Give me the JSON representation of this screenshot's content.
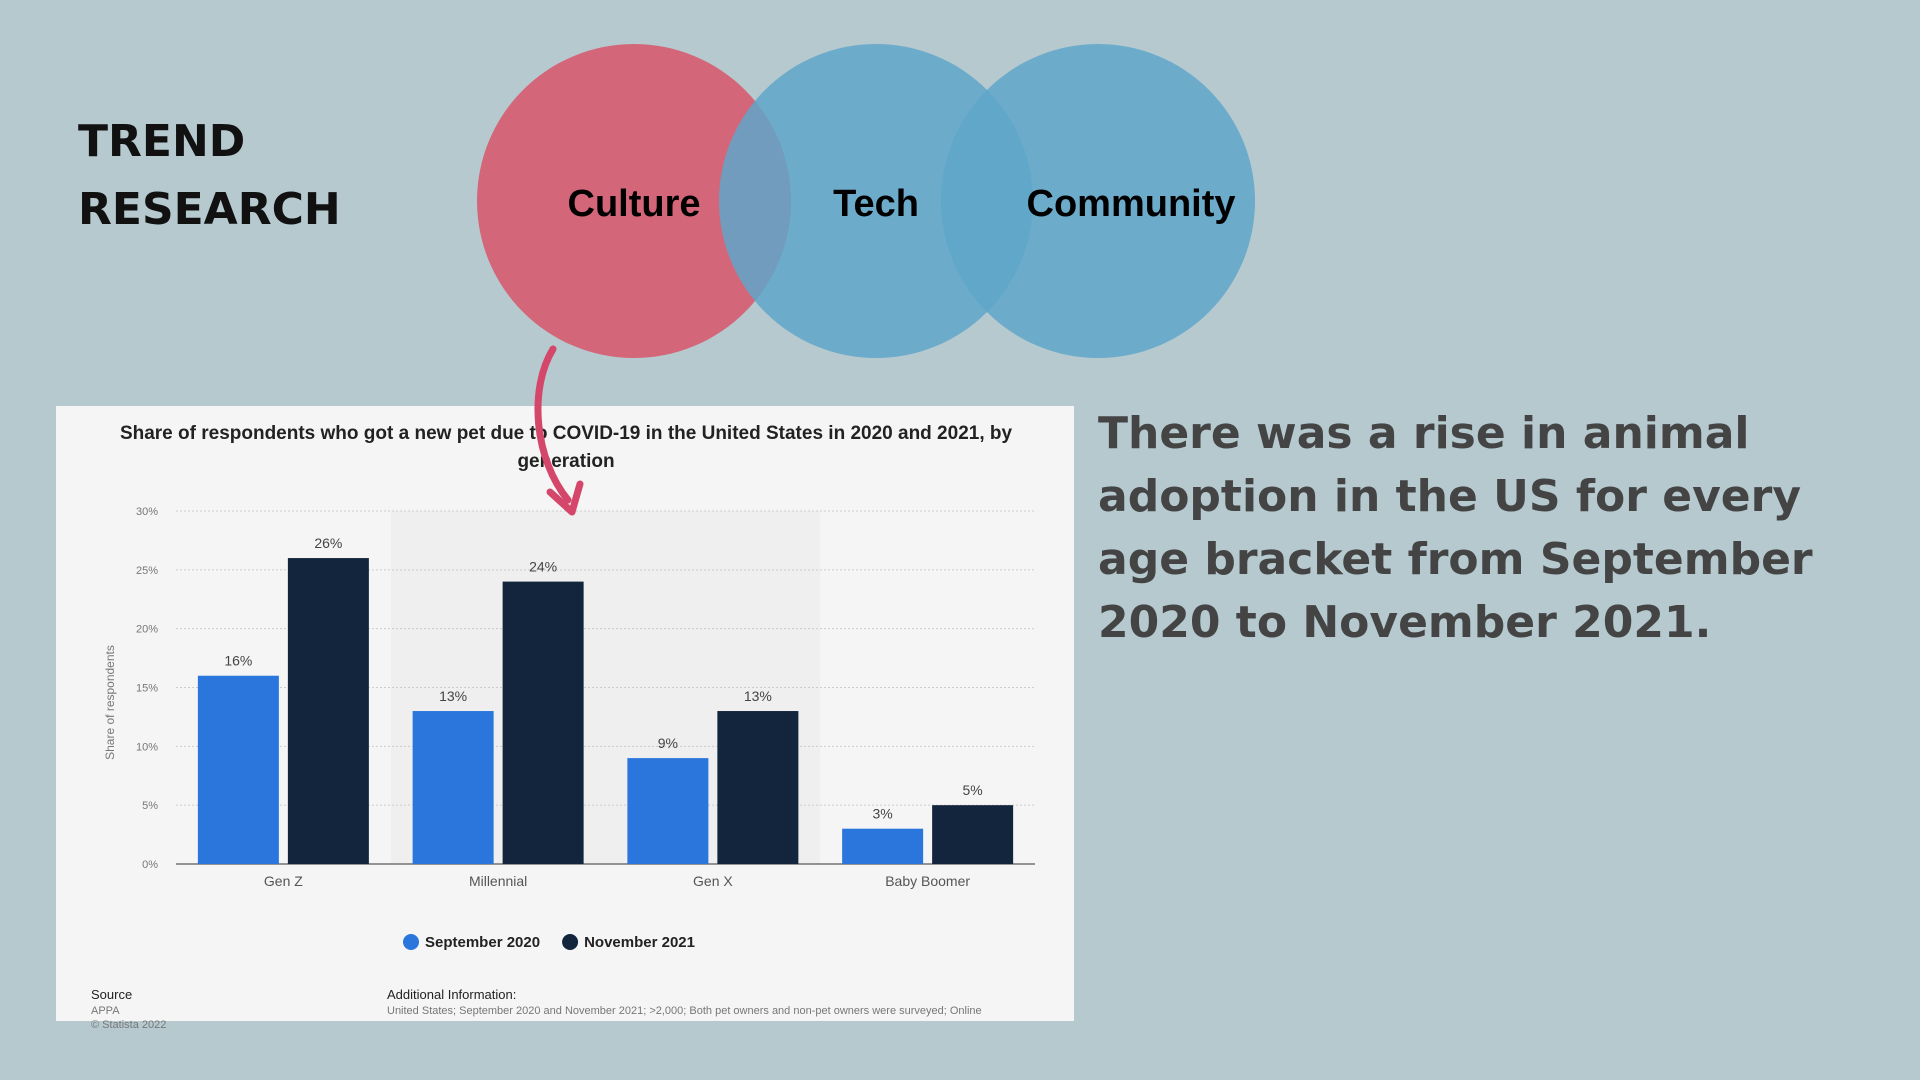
{
  "slide": {
    "title": "TREND RESEARCH",
    "venn": [
      "Culture",
      "Tech",
      "Community"
    ],
    "body": "There was a rise in animal adoption in the US for every age bracket from September 2020 to November 2021."
  },
  "chart_data": {
    "type": "bar",
    "title": "Share of respondents who got a new pet due to COVID-19 in the United States in 2020 and 2021, by generation",
    "y_label": "Share of respondents",
    "categories": [
      "Gen Z",
      "Millennial",
      "Gen X",
      "Baby Boomer"
    ],
    "series": [
      {
        "name": "September 2020",
        "color": "#2b76dd",
        "values": [
          16,
          13,
          9,
          3
        ],
        "value_labels": [
          "16%",
          "13%",
          "9%",
          "3%"
        ]
      },
      {
        "name": "November 2021",
        "color": "#13253d",
        "values": [
          26,
          24,
          13,
          5
        ],
        "value_labels": [
          "26%",
          "24%",
          "13%",
          "5%"
        ]
      }
    ],
    "ylim": [
      0,
      30
    ],
    "yticks": [
      {
        "value": 0,
        "label": "0%"
      },
      {
        "value": 5,
        "label": "5%"
      },
      {
        "value": 10,
        "label": "10%"
      },
      {
        "value": 15,
        "label": "15%"
      },
      {
        "value": 20,
        "label": "20%"
      },
      {
        "value": 25,
        "label": "25%"
      },
      {
        "value": 30,
        "label": "30%"
      }
    ],
    "grid": true,
    "source_heading": "Source",
    "source": "APPA",
    "copyright": "© Statista 2022",
    "info_heading": "Additional Information:",
    "info": "United States; September 2020 and November 2021; >2,000; Both pet owners and non-pet owners were surveyed; Online"
  }
}
